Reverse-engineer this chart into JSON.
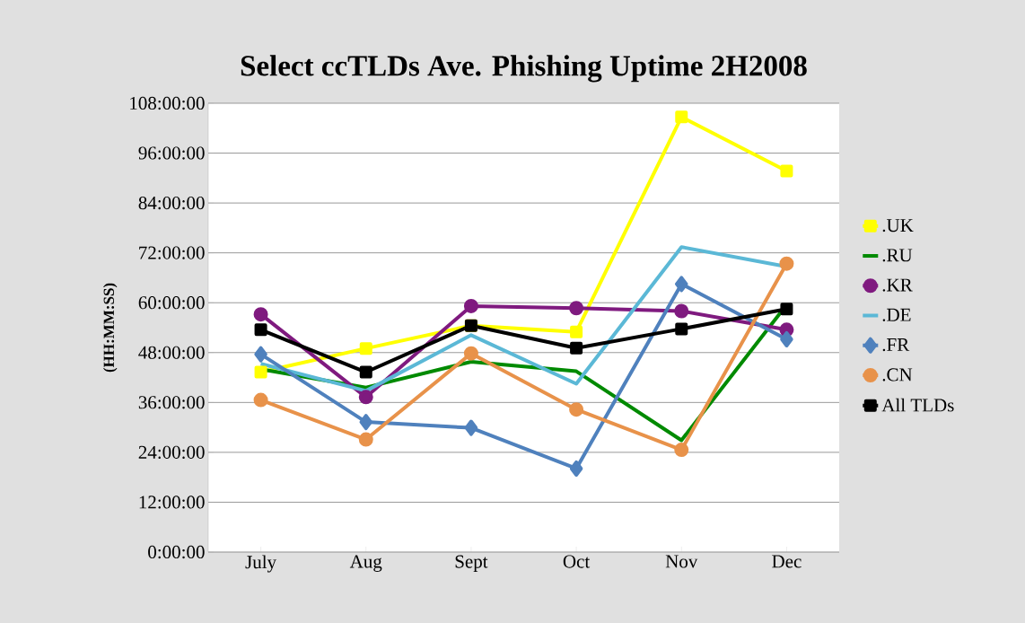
{
  "chart_data": {
    "type": "line",
    "title": "Select ccTLDs Ave. Phishing Uptime 2H2008",
    "ylabel": "(HH:MM:SS)",
    "categories": [
      "July",
      "Aug",
      "Sept",
      "Oct",
      "Nov",
      "Dec"
    ],
    "series": [
      {
        "name": ".UK",
        "color": "#ffff00",
        "marker": "square",
        "values": [
          43.3,
          49,
          54.5,
          53,
          104.7,
          91.7
        ]
      },
      {
        "name": ".RU",
        "color": "#008a00",
        "marker": "none",
        "values": [
          44,
          39.6,
          45.8,
          43.5,
          26.9,
          59.5
        ]
      },
      {
        "name": ".KR",
        "color": "#7f1a7f",
        "marker": "circle",
        "values": [
          57.2,
          37.3,
          59.2,
          58.7,
          58,
          53.5
        ]
      },
      {
        "name": ".DE",
        "color": "#5bb8d6",
        "marker": "none",
        "values": [
          45.3,
          38.8,
          52.2,
          40.5,
          73.4,
          68.7
        ]
      },
      {
        "name": ".FR",
        "color": "#4f81bd",
        "marker": "diamond",
        "values": [
          47.6,
          31.3,
          29.9,
          20.1,
          64.5,
          51.2
        ]
      },
      {
        "name": ".CN",
        "color": "#e8924a",
        "marker": "circle",
        "values": [
          36.6,
          27.1,
          47.8,
          34.3,
          24.6,
          69.4
        ]
      },
      {
        "name": "All TLDs",
        "color": "#000000",
        "marker": "square",
        "values": [
          53.5,
          43.3,
          54.5,
          49.1,
          53.7,
          58.5
        ]
      }
    ],
    "ylim": [
      0,
      108
    ],
    "yticks": [
      {
        "value": 0,
        "label": "0:00:00"
      },
      {
        "value": 12,
        "label": "12:00:00"
      },
      {
        "value": 24,
        "label": "24:00:00"
      },
      {
        "value": 36,
        "label": "36:00:00"
      },
      {
        "value": 48,
        "label": "48:00:00"
      },
      {
        "value": 60,
        "label": "60:00:00"
      },
      {
        "value": 72,
        "label": "72:00:00"
      },
      {
        "value": 84,
        "label": "84:00:00"
      },
      {
        "value": 96,
        "label": "96:00:00"
      },
      {
        "value": 108,
        "label": "108:00:00"
      }
    ],
    "grid": "y",
    "legend": "right",
    "line_style": "solid"
  }
}
